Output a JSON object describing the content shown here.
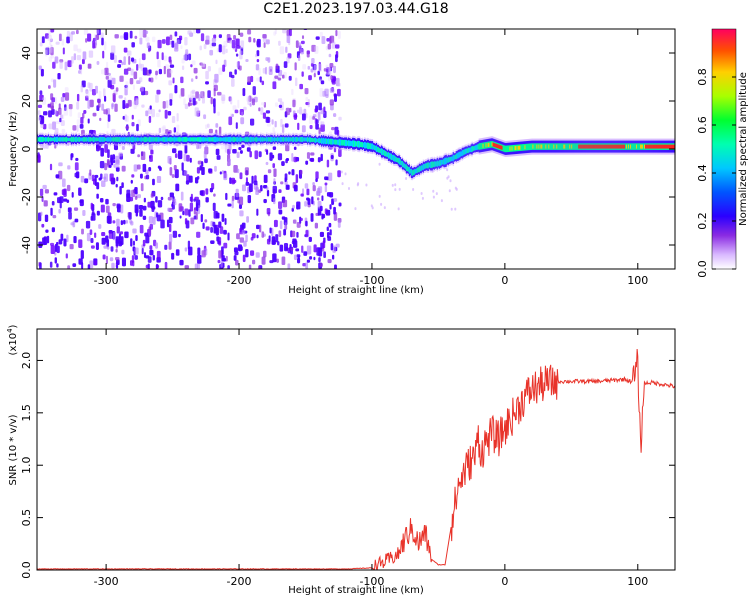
{
  "title": "C2E1.2023.197.03.44.G18",
  "colors": {
    "snr_line": "#e8332a",
    "spectrogram_palette": [
      "#ffffff",
      "#c9a3ff",
      "#8a2be2",
      "#6a00ff",
      "#2a00ff",
      "#0044ff",
      "#00b0ff",
      "#00ffd0",
      "#00ff40",
      "#b0ff00",
      "#ffd000",
      "#ff6000",
      "#ff0040"
    ]
  },
  "chart_data": [
    {
      "type": "heatmap",
      "title": "C2E1.2023.197.03.44.G18",
      "xlabel": "Height of straight line (km)",
      "ylabel": "Frequency (Hz)",
      "xlim": [
        -352,
        128
      ],
      "ylim": [
        -50,
        50
      ],
      "x_ticks": [
        -300,
        -200,
        -100,
        0,
        100
      ],
      "y_ticks": [
        -40,
        -20,
        0,
        20,
        40
      ],
      "colorbar": {
        "label": "Normalized spectral amplitude",
        "range": [
          0,
          1
        ],
        "ticks": [
          0.0,
          0.2,
          0.4,
          0.6,
          0.8
        ]
      },
      "ridge_frequency_trace": {
        "x": [
          -352,
          -300,
          -250,
          -200,
          -150,
          -130,
          -110,
          -100,
          -90,
          -80,
          -70,
          -60,
          -50,
          -40,
          -30,
          -20,
          -10,
          0,
          20,
          60,
          100,
          128
        ],
        "y": [
          4,
          4,
          4,
          4,
          4,
          3,
          2,
          1,
          -2,
          -5,
          -10,
          -7,
          -6,
          -4,
          -1,
          1,
          2,
          0,
          1,
          1,
          1,
          1
        ]
      }
    },
    {
      "type": "line",
      "xlabel": "Height of straight line (km)",
      "ylabel": "SNR (10 * v/v)",
      "y_multiplier": "(x10",
      "y_multiplier_exp": "4",
      "y_multiplier_close": ")",
      "xlim": [
        -352,
        128
      ],
      "ylim": [
        0,
        2.3
      ],
      "x_ticks": [
        -300,
        -200,
        -100,
        0,
        100
      ],
      "y_ticks": [
        0.0,
        0.5,
        1.0,
        1.5,
        2.0
      ],
      "series": [
        {
          "x": [
            -352,
            -300,
            -250,
            -200,
            -150,
            -120,
            -100,
            -90,
            -80,
            -75,
            -70,
            -65,
            -60,
            -55,
            -50,
            -45,
            -40,
            -35,
            -30,
            -25,
            -22,
            -20,
            -18,
            -15,
            -10,
            -5,
            0,
            5,
            10,
            15,
            20,
            30,
            40,
            50,
            60,
            70,
            80,
            90,
            95,
            98,
            100,
            102,
            105,
            110,
            120,
            128
          ],
          "y": [
            0.01,
            0.01,
            0.01,
            0.01,
            0.01,
            0.01,
            0.02,
            0.08,
            0.15,
            0.3,
            0.4,
            0.25,
            0.35,
            0.1,
            0.05,
            0.05,
            0.45,
            0.8,
            0.95,
            1.05,
            1.1,
            1.3,
            1.1,
            1.2,
            1.3,
            1.25,
            1.35,
            1.45,
            1.55,
            1.65,
            1.72,
            1.78,
            1.8,
            1.8,
            1.8,
            1.8,
            1.81,
            1.82,
            1.8,
            1.85,
            2.0,
            1.15,
            1.78,
            1.79,
            1.77,
            1.75
          ]
        }
      ]
    }
  ]
}
